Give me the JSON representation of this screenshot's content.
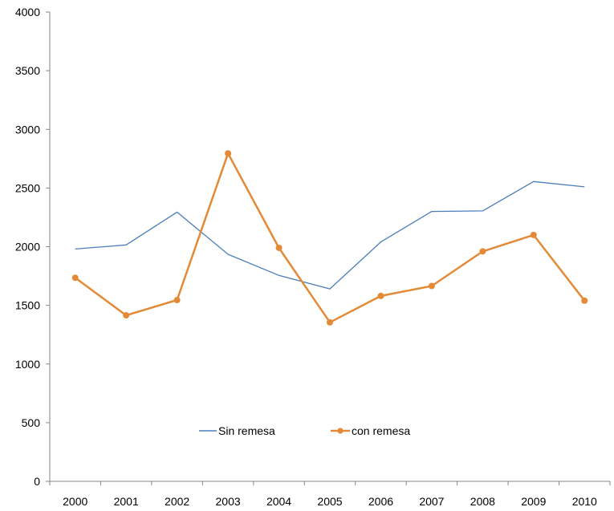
{
  "chart_data": {
    "type": "line",
    "title": "",
    "xlabel": "",
    "ylabel": "",
    "categories": [
      "2000",
      "2001",
      "2002",
      "2003",
      "2004",
      "2005",
      "2006",
      "2007",
      "2008",
      "2009",
      "2010"
    ],
    "ylim": [
      0,
      4000
    ],
    "yticks": [
      0,
      500,
      1000,
      1500,
      2000,
      2500,
      3000,
      3500,
      4000
    ],
    "grid": false,
    "legend": "bottom-center, inside plot",
    "series": [
      {
        "name": "Sin remesa",
        "color": "#4A7EBB",
        "markers": false,
        "values": [
          1980,
          2015,
          2295,
          1935,
          1755,
          1640,
          2040,
          2300,
          2305,
          2555,
          2510
        ]
      },
      {
        "name": "con remesa",
        "color": "#E48A37",
        "markers": true,
        "values": [
          1735,
          1415,
          1545,
          2795,
          1990,
          1355,
          1580,
          1665,
          1960,
          2100,
          1540
        ]
      }
    ]
  }
}
